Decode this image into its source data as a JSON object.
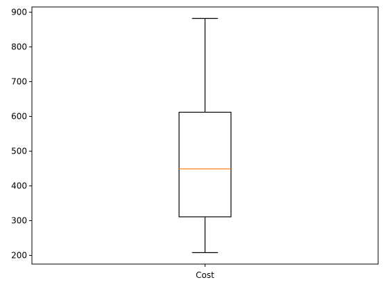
{
  "chart_data": {
    "type": "box",
    "categories": [
      "Cost"
    ],
    "boxes": [
      {
        "name": "Cost",
        "whisker_low": 208,
        "q1": 311,
        "median": 449,
        "q3": 612,
        "whisker_high": 882
      }
    ],
    "title": "",
    "xlabel": "",
    "ylabel": "",
    "ylim": [
      175,
      915
    ],
    "yticks": [
      200,
      300,
      400,
      500,
      600,
      700,
      800,
      900
    ],
    "ytick_labels": [
      "200",
      "300",
      "400",
      "500",
      "600",
      "700",
      "800",
      "900"
    ],
    "grid": false,
    "legend": "none",
    "colors": {
      "box": "#000000",
      "median": "#ff7f0e",
      "axes": "#000000",
      "background": "#ffffff"
    }
  }
}
